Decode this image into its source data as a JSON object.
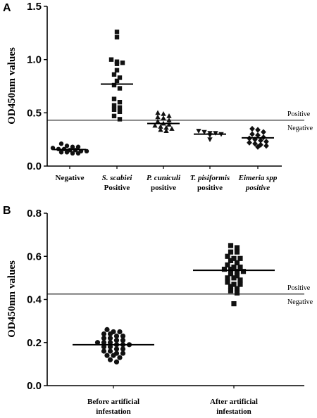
{
  "chart_data": [
    {
      "panel": "A",
      "type": "scatter",
      "ylabel": "OD450nm values",
      "ylim": [
        0,
        1.5
      ],
      "yticks": [
        0.0,
        0.5,
        1.0,
        1.5
      ],
      "ytick_labels": [
        "0.0",
        "0.5",
        "1.0",
        "1.5"
      ],
      "threshold": 0.43,
      "threshold_labels": {
        "above": "Positive",
        "below": "Negative"
      },
      "groups": [
        {
          "line1": "Negative",
          "line2": "",
          "italic1": false,
          "italic2": false,
          "marker": "circle",
          "mean": 0.155,
          "values": [
            0.21,
            0.19,
            0.18,
            0.18,
            0.17,
            0.16,
            0.16,
            0.15,
            0.15,
            0.14,
            0.14,
            0.13,
            0.13,
            0.12,
            0.12
          ]
        },
        {
          "line1": "S. scabiei",
          "line2": "Positive",
          "italic1": true,
          "italic2": false,
          "marker": "square",
          "mean": 0.77,
          "values": [
            1.26,
            1.21,
            1.0,
            0.98,
            0.97,
            0.96,
            0.9,
            0.86,
            0.83,
            0.8,
            0.76,
            0.73,
            0.63,
            0.6,
            0.57,
            0.55,
            0.53,
            0.51,
            0.47,
            0.44
          ]
        },
        {
          "line1": "P. cuniculi",
          "line2": "positive",
          "italic1": true,
          "italic2": false,
          "marker": "triangle",
          "mean": 0.4,
          "values": [
            0.5,
            0.49,
            0.47,
            0.46,
            0.45,
            0.43,
            0.42,
            0.4,
            0.39,
            0.38,
            0.37,
            0.36,
            0.35,
            0.34,
            0.33
          ]
        },
        {
          "line1": "T. pisiformis",
          "line2": "positive",
          "italic1": true,
          "italic2": false,
          "marker": "triangle-down",
          "mean": 0.3,
          "values": [
            0.33,
            0.32,
            0.31,
            0.31,
            0.3,
            0.29,
            0.25
          ]
        },
        {
          "line1": "Eimeria spp",
          "line2": "positive",
          "italic1": true,
          "italic2": true,
          "marker": "diamond",
          "mean": 0.265,
          "values": [
            0.35,
            0.34,
            0.32,
            0.3,
            0.29,
            0.27,
            0.26,
            0.25,
            0.24,
            0.23,
            0.22,
            0.21,
            0.2,
            0.19,
            0.18
          ]
        }
      ]
    },
    {
      "panel": "B",
      "type": "scatter",
      "ylabel": "OD450nm values",
      "ylim": [
        0,
        0.8
      ],
      "yticks": [
        0.0,
        0.2,
        0.4,
        0.6,
        0.8
      ],
      "ytick_labels": [
        "0.0",
        "0.2",
        "0.4",
        "0.6",
        "0.8"
      ],
      "threshold": 0.425,
      "threshold_labels": {
        "above": "Positive",
        "below": "Negative"
      },
      "groups": [
        {
          "line1": "Before artificial",
          "line2": "infestation",
          "italic1": false,
          "italic2": false,
          "marker": "circle",
          "mean": 0.19,
          "values": [
            0.26,
            0.25,
            0.25,
            0.24,
            0.24,
            0.23,
            0.23,
            0.22,
            0.22,
            0.21,
            0.21,
            0.2,
            0.2,
            0.2,
            0.19,
            0.19,
            0.19,
            0.18,
            0.18,
            0.17,
            0.17,
            0.16,
            0.16,
            0.15,
            0.15,
            0.14,
            0.14,
            0.13,
            0.12,
            0.11
          ]
        },
        {
          "line1": "After artificial",
          "line2": "infestation",
          "italic1": false,
          "italic2": false,
          "marker": "square",
          "mean": 0.535,
          "values": [
            0.65,
            0.64,
            0.62,
            0.62,
            0.6,
            0.59,
            0.59,
            0.58,
            0.57,
            0.56,
            0.55,
            0.55,
            0.54,
            0.54,
            0.53,
            0.53,
            0.52,
            0.51,
            0.5,
            0.5,
            0.49,
            0.48,
            0.47,
            0.47,
            0.46,
            0.45,
            0.44,
            0.43,
            0.38
          ]
        }
      ]
    }
  ]
}
